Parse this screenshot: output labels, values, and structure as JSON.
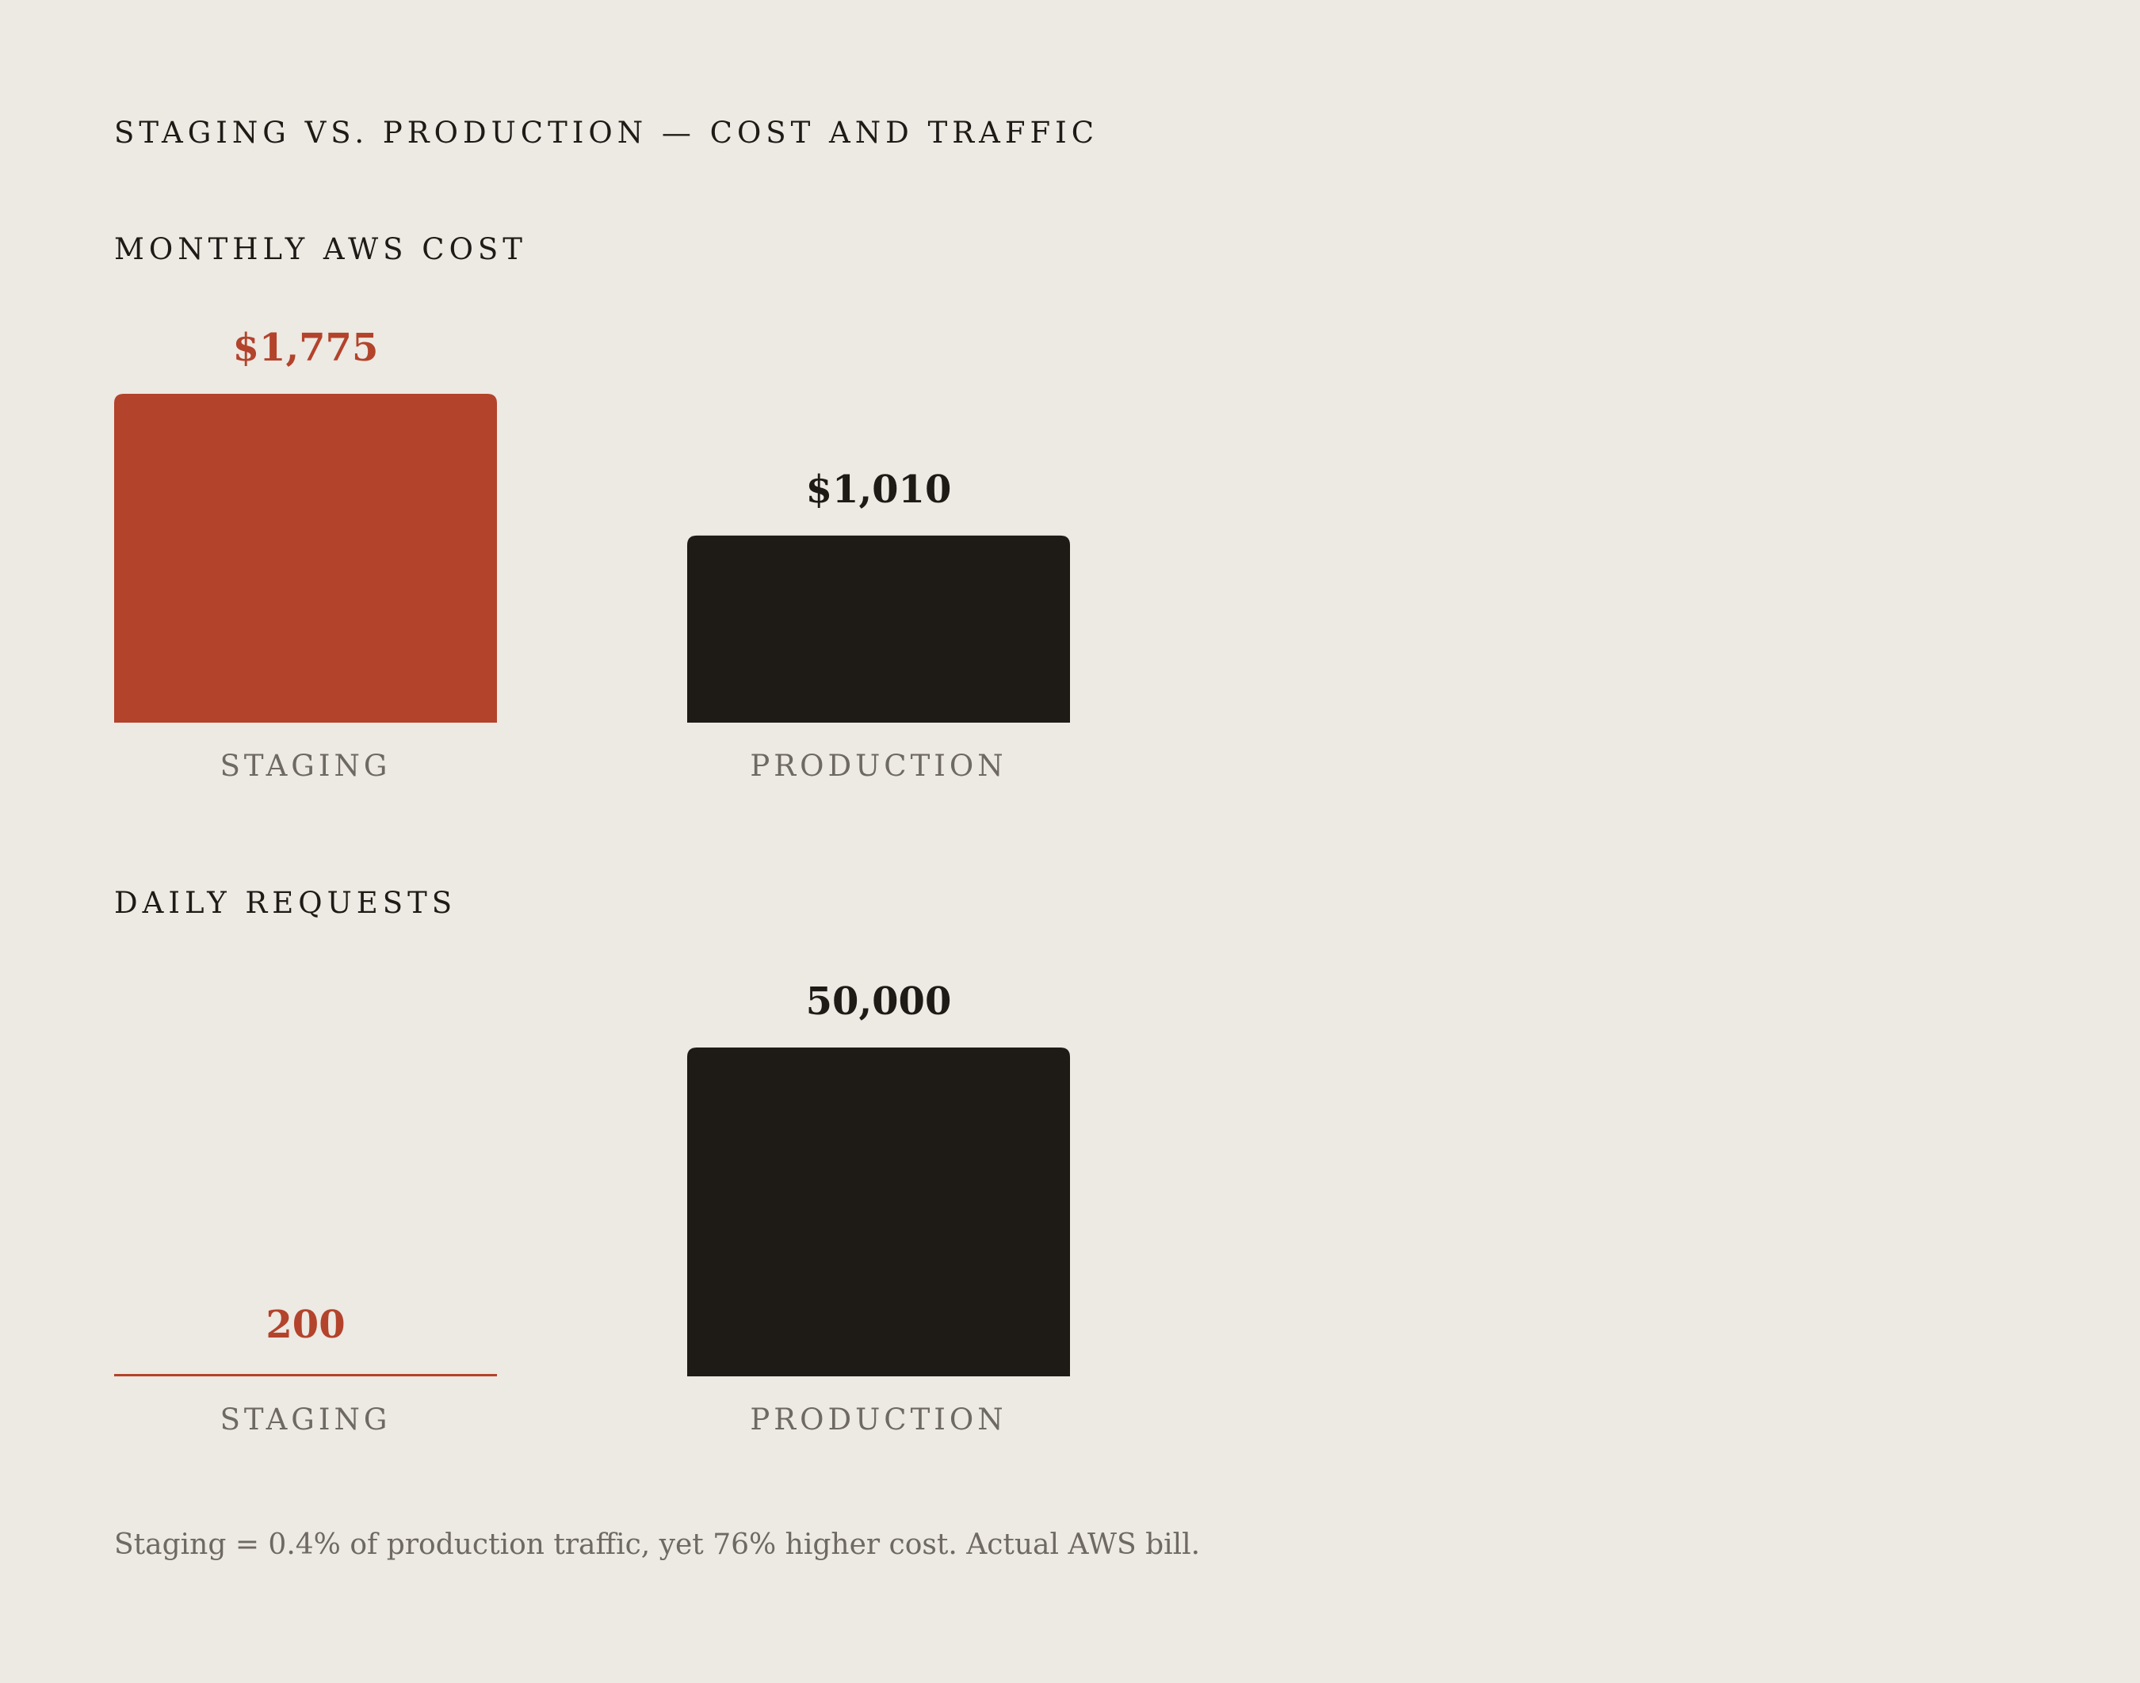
{
  "title": "STAGING VS. PRODUCTION — COST AND TRAFFIC",
  "colors": {
    "background": "#EDE9E3",
    "staging": "#B3432B",
    "production": "#1E1B17",
    "category_label": "#6E6963"
  },
  "chart_data": [
    {
      "type": "bar",
      "title": "MONTHLY AWS COST",
      "categories": [
        "STAGING",
        "PRODUCTION"
      ],
      "values": [
        1775,
        1010
      ],
      "value_labels": [
        "$1,775",
        "$1,010"
      ],
      "ylim": [
        0,
        1775
      ],
      "grid": false
    },
    {
      "type": "bar",
      "title": "DAILY REQUESTS",
      "categories": [
        "STAGING",
        "PRODUCTION"
      ],
      "values": [
        200,
        50000
      ],
      "value_labels": [
        "200",
        "50,000"
      ],
      "ylim": [
        0,
        50000
      ],
      "grid": false
    }
  ],
  "footnote": "Staging = 0.4% of production traffic, yet 76% higher cost. Actual AWS bill."
}
